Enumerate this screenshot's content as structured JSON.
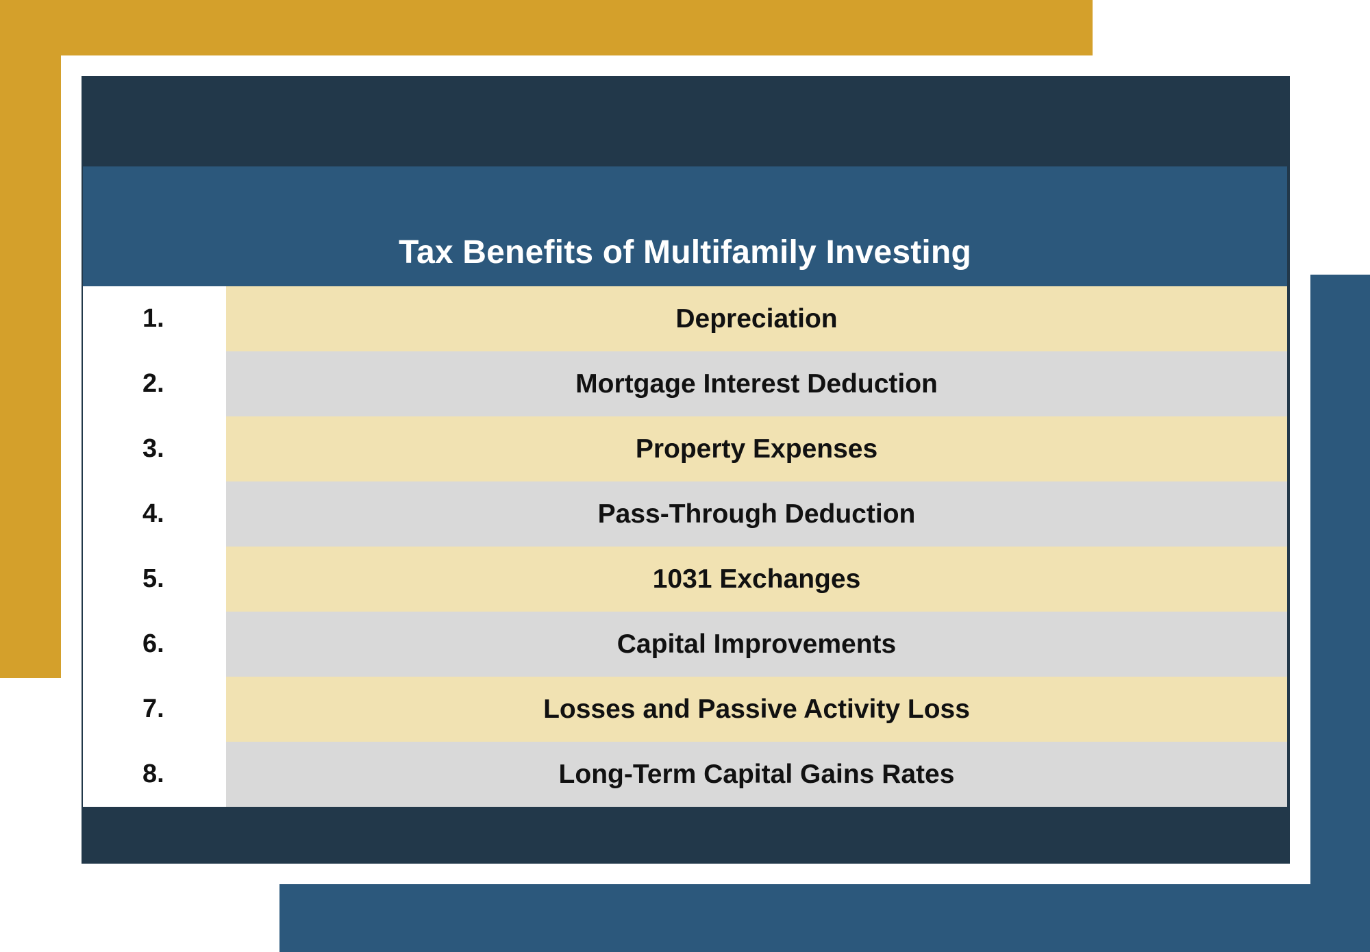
{
  "colors": {
    "gold_accent": "#D4A02B",
    "blue_accent": "#2C587C",
    "dark_navy": "#22384A",
    "row_gold": "#F1E2B2",
    "row_gray": "#D9D9D9",
    "text_dark": "#111111",
    "title_text": "#ffffff"
  },
  "table": {
    "title": "Tax Benefits of Multifamily Investing",
    "rows": [
      {
        "number": "1.",
        "label": "Depreciation"
      },
      {
        "number": "2.",
        "label": "Mortgage Interest Deduction"
      },
      {
        "number": "3.",
        "label": "Property Expenses"
      },
      {
        "number": "4.",
        "label": "Pass-Through Deduction"
      },
      {
        "number": "5.",
        "label": "1031 Exchanges"
      },
      {
        "number": "6.",
        "label": "Capital Improvements"
      },
      {
        "number": "7.",
        "label": "Losses and Passive Activity Loss"
      },
      {
        "number": "8.",
        "label": "Long-Term Capital Gains Rates"
      }
    ]
  }
}
